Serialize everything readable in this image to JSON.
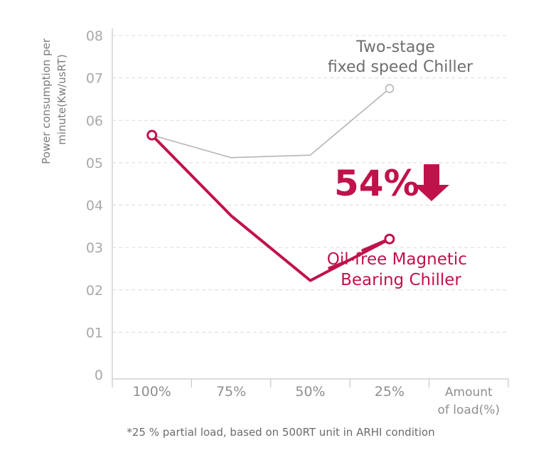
{
  "chart_data": {
    "type": "line",
    "categories": [
      "100%",
      "75%",
      "50%",
      "25%"
    ],
    "x_axis_end_label": [
      "Amount",
      "of load(%)"
    ],
    "ylabel": [
      "Power consumption per",
      "minute(Kw/usRT)"
    ],
    "y_ticks": [
      "0",
      "01",
      "02",
      "03",
      "04",
      "05",
      "06",
      "07",
      "08"
    ],
    "ylim": [
      0,
      8
    ],
    "grid": "horizontal dashed",
    "series": [
      {
        "name": [
          "Two-stage",
          "fixed speed Chiller"
        ],
        "values": [
          5.65,
          5.12,
          5.18,
          6.75
        ],
        "color": "#b5b5b5"
      },
      {
        "name": [
          "Oil-free Magnetic",
          "Bearing Chiller"
        ],
        "values": [
          5.65,
          3.75,
          2.22,
          3.2
        ],
        "color": "#c0124a"
      }
    ],
    "annotation": "54%",
    "annotation_icon": "arrow-down-icon",
    "footnote": "*25 % partial load, based on 500RT unit in ARHI condition"
  }
}
